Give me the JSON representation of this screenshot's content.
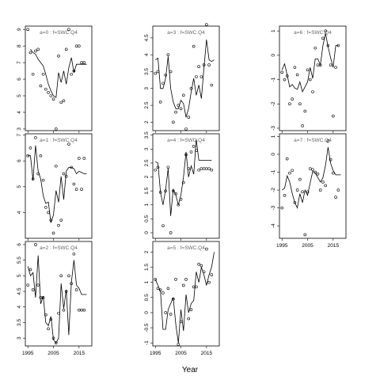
{
  "figure": {
    "xlabel": "Year",
    "x_ticks": [
      1995,
      2005,
      2015
    ],
    "x_tick_labels": [
      "1995",
      "2005",
      "2015"
    ],
    "xlim": [
      1994,
      2020
    ]
  },
  "chart_data": [
    {
      "type": "line",
      "panel_title": "a=0 : f=SWC.Q4",
      "ylim": [
        2.9,
        9.2
      ],
      "y_ticks": [
        3,
        4,
        5,
        6,
        7,
        8,
        9
      ],
      "series": [
        {
          "kind": "points",
          "x": [
            1995,
            1996,
            1997,
            1998,
            1999,
            2000,
            2001,
            2002,
            2003,
            2004,
            2005,
            2006,
            2007,
            2008,
            2009,
            2010,
            2011,
            2012,
            2013,
            2014,
            2015,
            2016,
            2017
          ],
          "values": [
            9.0,
            7.6,
            6.3,
            7.7,
            7.8,
            5.6,
            6.3,
            5.4,
            5.2,
            5.0,
            4.8,
            3.0,
            7.4,
            4.6,
            4.7,
            7.8,
            9.0,
            6.3,
            6.5,
            8.0,
            8.0,
            7.0,
            7.0
          ]
        },
        {
          "kind": "line",
          "x": [
            1996,
            1997,
            1998,
            1999,
            2000,
            2001,
            2002,
            2003,
            2004,
            2005,
            2006,
            2007,
            2008,
            2009,
            2010,
            2011,
            2012,
            2013,
            2014,
            2015,
            2016,
            2017,
            2018
          ],
          "values": [
            7.8,
            7.6,
            7.5,
            7.2,
            7.0,
            6.8,
            6.3,
            5.7,
            5.3,
            5.0,
            4.9,
            6.4,
            5.8,
            6.5,
            5.7,
            6.7,
            7.3,
            6.4,
            6.9,
            6.9,
            6.9,
            6.9,
            6.9
          ]
        }
      ]
    },
    {
      "type": "line",
      "panel_title": "a=3 : f=SWC.Q4",
      "ylim": [
        1.75,
        4.85
      ],
      "y_ticks": [
        2.0,
        2.5,
        3.0,
        3.5,
        4.0,
        4.5
      ],
      "series": [
        {
          "kind": "points",
          "x": [
            1995,
            1996,
            1997,
            1998,
            1999,
            2000,
            2001,
            2002,
            2003,
            2004,
            2005,
            2006,
            2007,
            2008,
            2009,
            2010,
            2011,
            2012,
            2013,
            2014,
            2015,
            2016,
            2017
          ],
          "values": [
            3.45,
            3.5,
            2.6,
            3.15,
            3.4,
            4.0,
            3.5,
            2.0,
            2.3,
            2.5,
            2.4,
            2.8,
            1.8,
            2.15,
            3.0,
            4.25,
            3.35,
            3.65,
            3.35,
            3.7,
            4.9,
            3.7,
            3.1
          ]
        },
        {
          "kind": "line",
          "x": [
            1995,
            1996,
            1997,
            1998,
            1999,
            2000,
            2001,
            2002,
            2003,
            2004,
            2005,
            2006,
            2007,
            2008,
            2009,
            2010,
            2011,
            2012,
            2013,
            2014,
            2015,
            2016,
            2017,
            2018
          ],
          "values": [
            3.85,
            3.9,
            3.0,
            3.0,
            3.3,
            3.95,
            3.0,
            2.6,
            2.4,
            2.4,
            2.65,
            2.55,
            2.15,
            2.4,
            2.9,
            3.3,
            2.8,
            3.1,
            2.7,
            3.6,
            4.45,
            3.85,
            3.8,
            3.85
          ]
        }
      ]
    },
    {
      "type": "line",
      "panel_title": "a=6 : f=SWC.Q4",
      "ylim": [
        -3.1,
        1.2
      ],
      "y_ticks": [
        -3,
        -2,
        -1,
        0,
        1
      ],
      "series": [
        {
          "kind": "points",
          "x": [
            1995,
            1996,
            1997,
            1998,
            1999,
            2000,
            2001,
            2002,
            2003,
            2004,
            2005,
            2006,
            2007,
            2008,
            2009,
            2010,
            2011,
            2012,
            2013,
            2014,
            2015,
            2016,
            2017
          ],
          "values": [
            -0.7,
            -1.0,
            -0.85,
            -2.0,
            -1.8,
            -0.5,
            -0.8,
            -2.0,
            -2.9,
            -2.3,
            -0.6,
            -1.0,
            -1.5,
            0.3,
            -0.4,
            -0.4,
            0.7,
            1.0,
            0.4,
            -0.4,
            -2.5,
            -0.5,
            0.4
          ]
        },
        {
          "kind": "line",
          "x": [
            1995,
            1996,
            1997,
            1998,
            1999,
            2000,
            2001,
            2002,
            2003,
            2004,
            2005,
            2006,
            2007,
            2008,
            2009,
            2010,
            2011,
            2012,
            2013,
            2014,
            2015,
            2016,
            2017
          ],
          "values": [
            -0.6,
            -0.35,
            -0.8,
            -1.3,
            -1.2,
            -1.35,
            -1.4,
            -1.1,
            -1.5,
            -1.3,
            -1.1,
            -0.5,
            -0.95,
            -0.15,
            -0.15,
            -0.4,
            0.4,
            0.9,
            0.35,
            -0.1,
            -0.5,
            0.4,
            0.4
          ]
        }
      ]
    },
    {
      "type": "line",
      "panel_title": "a=1 : f=SWC.Q4",
      "ylim": [
        3.0,
        7.05
      ],
      "y_ticks": [
        4,
        5,
        6,
        7
      ],
      "series": [
        {
          "kind": "points",
          "x": [
            1995,
            1996,
            1997,
            1998,
            1999,
            2000,
            2001,
            2002,
            2003,
            2004,
            2005,
            2006,
            2007,
            2008,
            2009,
            2010,
            2011,
            2012,
            2013,
            2014,
            2015,
            2016,
            2017
          ],
          "values": [
            6.2,
            6.5,
            5.3,
            6.9,
            5.5,
            6.2,
            5.25,
            4.2,
            4.0,
            3.7,
            3.2,
            5.8,
            3.5,
            3.7,
            5.5,
            5.4,
            6.65,
            5.75,
            5.1,
            4.9,
            6.1,
            4.9,
            6.1
          ]
        },
        {
          "kind": "line",
          "x": [
            1995,
            1996,
            1997,
            1998,
            1999,
            2000,
            2001,
            2002,
            2003,
            2004,
            2005,
            2006,
            2007,
            2008,
            2009,
            2010,
            2011,
            2012,
            2013,
            2014,
            2015,
            2016,
            2017,
            2018
          ],
          "values": [
            6.2,
            6.2,
            5.25,
            6.6,
            5.6,
            5.3,
            4.65,
            4.35,
            4.4,
            3.6,
            3.9,
            4.85,
            4.4,
            5.4,
            4.5,
            5.6,
            5.75,
            5.75,
            5.7,
            5.5,
            5.6,
            5.55,
            5.5,
            5.5
          ]
        }
      ]
    },
    {
      "type": "line",
      "panel_title": "a=4 : f=SWC.Q4",
      "ylim": [
        -0.2,
        3.55
      ],
      "y_ticks": [
        0.0,
        0.5,
        1.0,
        1.5,
        2.0,
        2.5,
        3.0,
        3.5
      ],
      "series": [
        {
          "kind": "points",
          "x": [
            1995,
            1996,
            1997,
            1998,
            1999,
            2000,
            2001,
            2002,
            2003,
            2004,
            2005,
            2006,
            2007,
            2008,
            2009,
            2010,
            2011,
            2012,
            2013,
            2014,
            2015,
            2016,
            2017
          ],
          "values": [
            2.25,
            2.35,
            1.45,
            0.25,
            1.5,
            2.35,
            0.0,
            1.5,
            1.4,
            1.0,
            1.2,
            1.8,
            2.8,
            2.3,
            2.9,
            3.1,
            2.95,
            2.25,
            2.3,
            2.3,
            2.3,
            2.3,
            2.25
          ]
        },
        {
          "kind": "line",
          "x": [
            1995,
            1996,
            1997,
            1998,
            1999,
            2000,
            2001,
            2002,
            2003,
            2004,
            2005,
            2006,
            2007,
            2008,
            2009,
            2010,
            2011,
            2012,
            2013,
            2014,
            2015,
            2016,
            2017
          ],
          "values": [
            2.55,
            2.5,
            1.45,
            1.0,
            1.55,
            2.3,
            0.6,
            1.55,
            1.35,
            1.0,
            1.35,
            2.0,
            2.9,
            2.0,
            2.4,
            2.1,
            3.35,
            2.6,
            2.6,
            2.6,
            2.6,
            2.6,
            2.6
          ]
        }
      ]
    },
    {
      "type": "line",
      "panel_title": "a=7 : f=SWC.Q4",
      "ylim": [
        -4.7,
        1.15
      ],
      "y_ticks": [
        -4,
        -3,
        -2,
        -1,
        0,
        1
      ],
      "series": [
        {
          "kind": "points",
          "x": [
            1995,
            1996,
            1997,
            1998,
            1999,
            2000,
            2001,
            2002,
            2003,
            2004,
            2005,
            2006,
            2007,
            2008,
            2009,
            2010,
            2011,
            2012,
            2013,
            2014,
            2015,
            2016,
            2017
          ],
          "values": [
            -3.0,
            -2.3,
            -0.25,
            -1.05,
            -0.9,
            -2.7,
            -2.0,
            -1.4,
            -2.1,
            -4.5,
            -2.1,
            -0.8,
            -0.85,
            -1.0,
            -1.1,
            -2.0,
            -1.55,
            -1.75,
            0.75,
            -0.3,
            -1.05,
            -2.4,
            -2.0
          ]
        },
        {
          "kind": "line",
          "x": [
            1995,
            1996,
            1997,
            1998,
            1999,
            2000,
            2001,
            2002,
            2003,
            2004,
            2005,
            2006,
            2007,
            2008,
            2009,
            2010,
            2011,
            2012,
            2013,
            2014,
            2015,
            2016,
            2017,
            2018
          ],
          "values": [
            -2.0,
            -1.9,
            -1.2,
            -1.55,
            -2.2,
            -2.7,
            -3.0,
            -2.2,
            -2.7,
            -2.0,
            -2.3,
            -1.6,
            -0.95,
            -1.05,
            -1.3,
            -1.55,
            -1.3,
            -0.6,
            0.4,
            -0.5,
            -0.9,
            -1.15,
            -1.15,
            -1.15
          ]
        }
      ]
    },
    {
      "type": "line",
      "panel_title": "a=2 : f=SWC.Q4",
      "ylim": [
        2.75,
        6.1
      ],
      "y_ticks": [
        3.0,
        3.5,
        4.0,
        4.5,
        5.0,
        5.5,
        6.0
      ],
      "series": [
        {
          "kind": "points",
          "x": [
            1995,
            1996,
            1997,
            1998,
            1999,
            2000,
            2001,
            2002,
            2003,
            2004,
            2005,
            2006,
            2007,
            2008,
            2009,
            2010,
            2011,
            2012,
            2013,
            2014,
            2015,
            2016,
            2017
          ],
          "values": [
            4.7,
            5.2,
            4.55,
            6.0,
            4.7,
            4.3,
            4.3,
            3.75,
            3.3,
            3.6,
            3.0,
            2.85,
            3.8,
            5.0,
            3.9,
            4.5,
            5.0,
            4.75,
            5.7,
            4.55,
            3.9,
            3.9,
            3.9
          ]
        },
        {
          "kind": "line",
          "x": [
            1995,
            1996,
            1997,
            1998,
            1999,
            2000,
            2001,
            2002,
            2003,
            2004,
            2005,
            2006,
            2007,
            2008,
            2009,
            2010,
            2011,
            2012,
            2013,
            2014,
            2015,
            2016,
            2017,
            2018
          ],
          "values": [
            5.3,
            5.0,
            5.1,
            4.3,
            5.65,
            4.1,
            4.35,
            3.5,
            3.4,
            3.7,
            2.95,
            2.85,
            3.0,
            4.75,
            3.95,
            4.55,
            3.1,
            4.8,
            5.5,
            4.7,
            4.6,
            4.4,
            4.4,
            4.4
          ]
        }
      ]
    },
    {
      "type": "line",
      "panel_title": "a=5 : f=SWC.Q4",
      "ylim": [
        -1.1,
        2.35
      ],
      "y_ticks": [
        -1.0,
        -0.5,
        0.0,
        0.5,
        1.0,
        1.5,
        2.0
      ],
      "series": [
        {
          "kind": "points",
          "x": [
            1995,
            1996,
            1997,
            1998,
            1999,
            2000,
            2001,
            2002,
            2003,
            2004,
            2005,
            2006,
            2007,
            2008,
            2009,
            2010,
            2011,
            2012,
            2013,
            2014,
            2015,
            2016,
            2017
          ],
          "values": [
            1.1,
            0.8,
            0.75,
            0.65,
            0.0,
            0.8,
            -0.05,
            0.45,
            1.1,
            -1.05,
            -0.3,
            0.9,
            1.1,
            -0.2,
            0.1,
            0.85,
            0.85,
            1.6,
            1.55,
            1.35,
            2.1,
            1.0,
            1.25
          ]
        },
        {
          "kind": "line",
          "x": [
            1995,
            1996,
            1997,
            1998,
            1999,
            2000,
            2001,
            2002,
            2003,
            2004,
            2005,
            2006,
            2007,
            2008,
            2009,
            2010,
            2011,
            2012,
            2013,
            2014,
            2015,
            2016,
            2017,
            2018
          ],
          "values": [
            1.1,
            0.9,
            0.7,
            -0.55,
            -0.55,
            0.1,
            0.3,
            0.5,
            -0.4,
            -1.0,
            0.1,
            -0.6,
            0.6,
            0.0,
            0.3,
            0.4,
            1.35,
            1.0,
            1.5,
            1.25,
            0.9,
            1.25,
            1.5,
            2.0
          ]
        }
      ]
    }
  ]
}
